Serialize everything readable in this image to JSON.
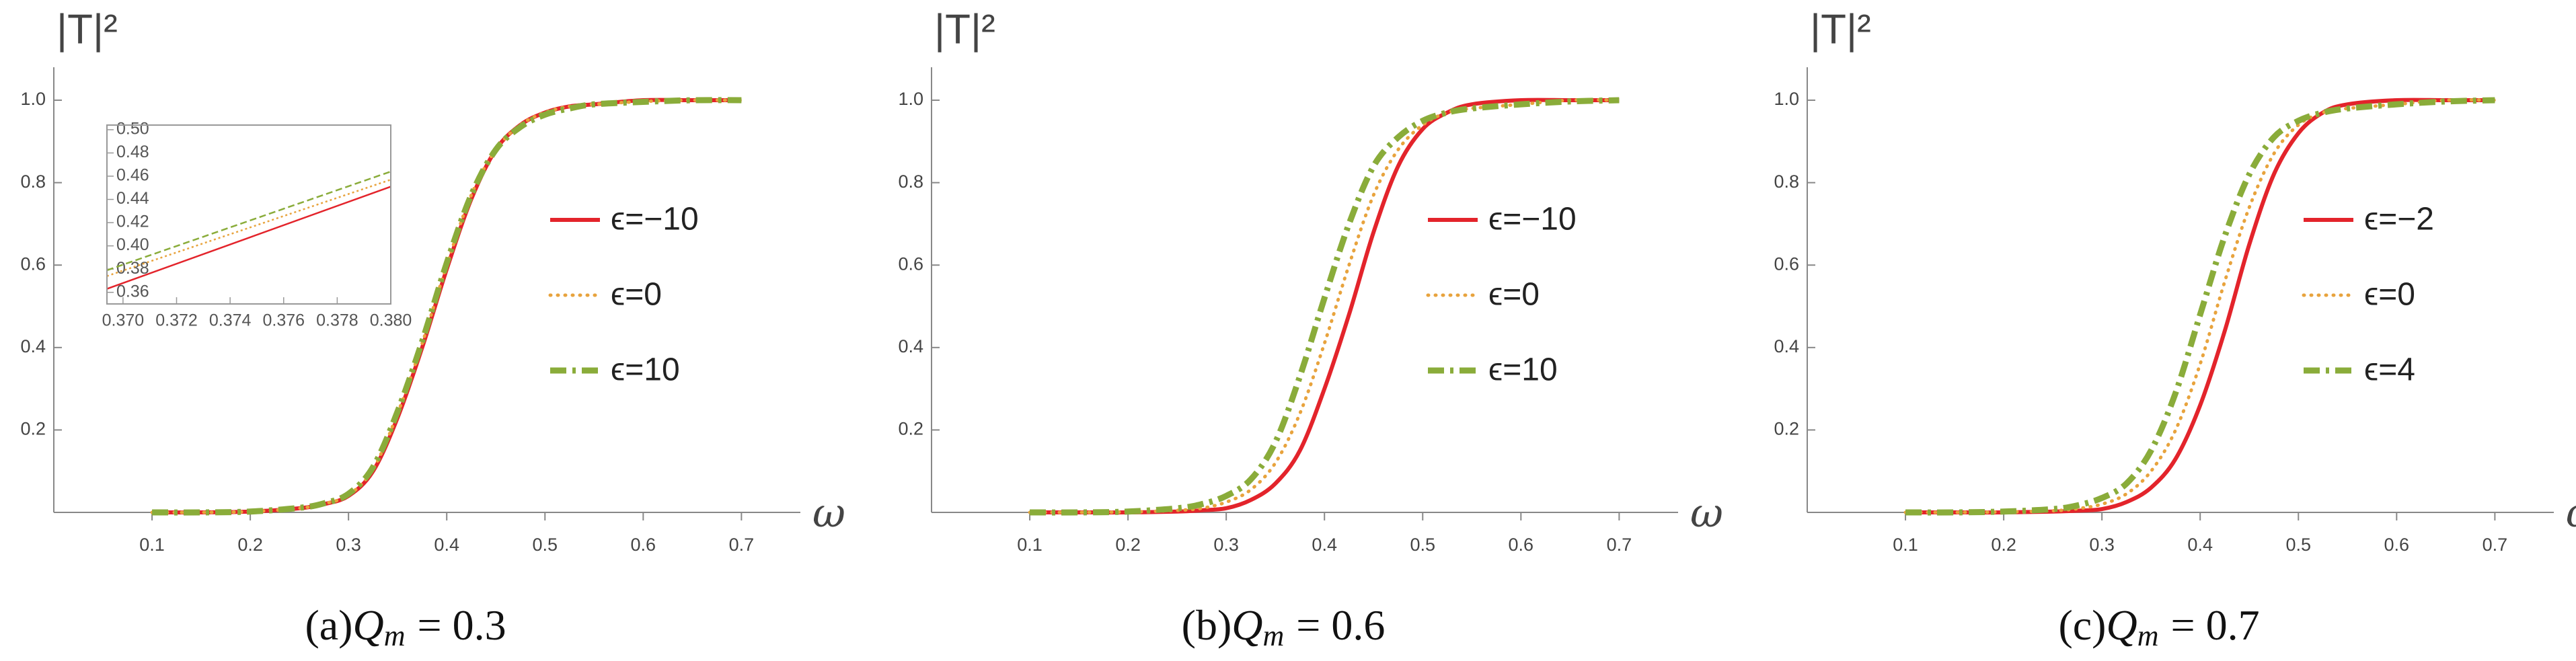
{
  "chart_data": [
    {
      "type": "line",
      "ylabel": "|T|²",
      "xlabel": "ω",
      "caption": {
        "label": "(a)",
        "symbol": "Q",
        "subscript": "m",
        "text": "= 0.3"
      },
      "xlim": [
        0,
        0.76
      ],
      "ylim": [
        0,
        1.08
      ],
      "xticks": [
        0.1,
        0.2,
        0.3,
        0.4,
        0.5,
        0.6,
        0.7
      ],
      "yticks": [
        0.2,
        0.4,
        0.6,
        0.8,
        {
          "value": 1.0,
          "label": "1.0"
        }
      ],
      "x": [
        0.1,
        0.15,
        0.2,
        0.25,
        0.275,
        0.3,
        0.325,
        0.35,
        0.375,
        0.4,
        0.425,
        0.45,
        0.475,
        0.5,
        0.525,
        0.55,
        0.6,
        0.65,
        0.7
      ],
      "series": [
        {
          "name": "ϵ=−10",
          "color": "#e3242b",
          "style": "solid",
          "values": [
            0,
            0,
            0.002,
            0.01,
            0.02,
            0.04,
            0.1,
            0.23,
            0.4,
            0.59,
            0.76,
            0.88,
            0.94,
            0.97,
            0.985,
            0.99,
            1.0,
            1.0,
            1.0
          ]
        },
        {
          "name": "ϵ=0",
          "color": "#e8a33d",
          "style": "dotted",
          "values": [
            0,
            0,
            0.002,
            0.01,
            0.021,
            0.042,
            0.105,
            0.24,
            0.41,
            0.6,
            0.77,
            0.88,
            0.94,
            0.97,
            0.985,
            0.99,
            0.997,
            1.0,
            1.0
          ]
        },
        {
          "name": "ϵ=10",
          "color": "#8aac3a",
          "style": "dashdot",
          "values": [
            0,
            0,
            0.002,
            0.011,
            0.022,
            0.045,
            0.11,
            0.245,
            0.415,
            0.605,
            0.77,
            0.88,
            0.935,
            0.965,
            0.98,
            0.99,
            0.996,
            1.0,
            1.0
          ]
        }
      ]
    },
    {
      "type": "line",
      "ylabel": "|T|²",
      "xlabel": "ω",
      "caption": {
        "label": "(b)",
        "symbol": "Q",
        "subscript": "m",
        "text": "= 0.6"
      },
      "xlim": [
        0,
        0.76
      ],
      "ylim": [
        0,
        1.08
      ],
      "xticks": [
        0.1,
        0.2,
        0.3,
        0.4,
        0.5,
        0.6,
        0.7
      ],
      "yticks": [
        0.2,
        0.4,
        0.6,
        0.8,
        {
          "value": 1.0,
          "label": "1.0"
        }
      ],
      "x": [
        0.1,
        0.15,
        0.2,
        0.25,
        0.275,
        0.3,
        0.325,
        0.35,
        0.375,
        0.4,
        0.425,
        0.45,
        0.475,
        0.5,
        0.525,
        0.55,
        0.6,
        0.65,
        0.7
      ],
      "series": [
        {
          "name": "ϵ=−10",
          "color": "#e3242b",
          "style": "solid",
          "values": [
            0,
            0,
            0,
            0.002,
            0.005,
            0.01,
            0.03,
            0.07,
            0.15,
            0.3,
            0.48,
            0.68,
            0.84,
            0.93,
            0.97,
            0.99,
            1.0,
            1.0,
            1.0
          ]
        },
        {
          "name": "ϵ=0",
          "color": "#e8a33d",
          "style": "dotted",
          "values": [
            0,
            0,
            0.001,
            0.005,
            0.01,
            0.025,
            0.055,
            0.12,
            0.24,
            0.41,
            0.6,
            0.77,
            0.88,
            0.94,
            0.97,
            0.98,
            0.99,
            1.0,
            1.0
          ]
        },
        {
          "name": "ϵ=10",
          "color": "#8aac3a",
          "style": "dashdot",
          "values": [
            0,
            0,
            0.002,
            0.01,
            0.02,
            0.04,
            0.08,
            0.17,
            0.33,
            0.52,
            0.7,
            0.84,
            0.91,
            0.95,
            0.97,
            0.98,
            0.99,
            0.997,
            1.0
          ]
        }
      ]
    },
    {
      "type": "line",
      "ylabel": "|T|²",
      "xlabel": "ω",
      "caption": {
        "label": "(c)",
        "symbol": "Q",
        "subscript": "m",
        "text": "= 0.7"
      },
      "xlim": [
        0,
        0.76
      ],
      "ylim": [
        0,
        1.08
      ],
      "xticks": [
        0.1,
        0.2,
        0.3,
        0.4,
        0.5,
        0.6,
        0.7
      ],
      "yticks": [
        0.2,
        0.4,
        0.6,
        0.8,
        {
          "value": 1.0,
          "label": "1.0"
        }
      ],
      "x": [
        0.1,
        0.15,
        0.2,
        0.25,
        0.275,
        0.3,
        0.325,
        0.35,
        0.375,
        0.4,
        0.425,
        0.45,
        0.475,
        0.5,
        0.525,
        0.55,
        0.6,
        0.65,
        0.7
      ],
      "series": [
        {
          "name": "ϵ=−2",
          "color": "#e3242b",
          "style": "solid",
          "values": [
            0,
            0,
            0,
            0.002,
            0.004,
            0.008,
            0.025,
            0.06,
            0.13,
            0.26,
            0.44,
            0.65,
            0.82,
            0.92,
            0.97,
            0.99,
            1.0,
            1.0,
            1.0
          ]
        },
        {
          "name": "ϵ=0",
          "color": "#e8a33d",
          "style": "dotted",
          "values": [
            0,
            0,
            0.001,
            0.004,
            0.009,
            0.02,
            0.045,
            0.1,
            0.2,
            0.36,
            0.56,
            0.74,
            0.87,
            0.94,
            0.97,
            0.98,
            0.99,
            1.0,
            1.0
          ]
        },
        {
          "name": "ϵ=4",
          "color": "#8aac3a",
          "style": "dashdot",
          "values": [
            0,
            0,
            0.002,
            0.008,
            0.017,
            0.035,
            0.07,
            0.15,
            0.29,
            0.48,
            0.67,
            0.82,
            0.91,
            0.95,
            0.97,
            0.98,
            0.99,
            0.997,
            1.0
          ]
        }
      ]
    },
    {
      "type": "inset",
      "xlim": [
        0.3694,
        0.38
      ],
      "ylim": [
        0.35,
        0.504
      ],
      "xticks": [
        {
          "value": 0.37,
          "label": "0.370"
        },
        {
          "value": 0.372,
          "label": "0.372"
        },
        {
          "value": 0.374,
          "label": "0.374"
        },
        {
          "value": 0.376,
          "label": "0.376"
        },
        {
          "value": 0.378,
          "label": "0.378"
        },
        {
          "value": 0.38,
          "label": "0.380"
        }
      ],
      "yticks": [
        0.36,
        0.38,
        {
          "value": 0.4,
          "label": "0.40"
        },
        0.42,
        0.44,
        0.46,
        0.48,
        {
          "value": 0.5,
          "label": "0.50"
        }
      ],
      "x": [
        0.3694,
        0.38
      ],
      "series": [
        {
          "color": "#e3242b",
          "style": "thin",
          "values": [
            0.363,
            0.451
          ]
        },
        {
          "color": "#e8a33d",
          "style": "thindot",
          "values": [
            0.374,
            0.457
          ]
        },
        {
          "color": "#8aac3a",
          "style": "thindash",
          "values": [
            0.379,
            0.464
          ]
        }
      ]
    }
  ]
}
